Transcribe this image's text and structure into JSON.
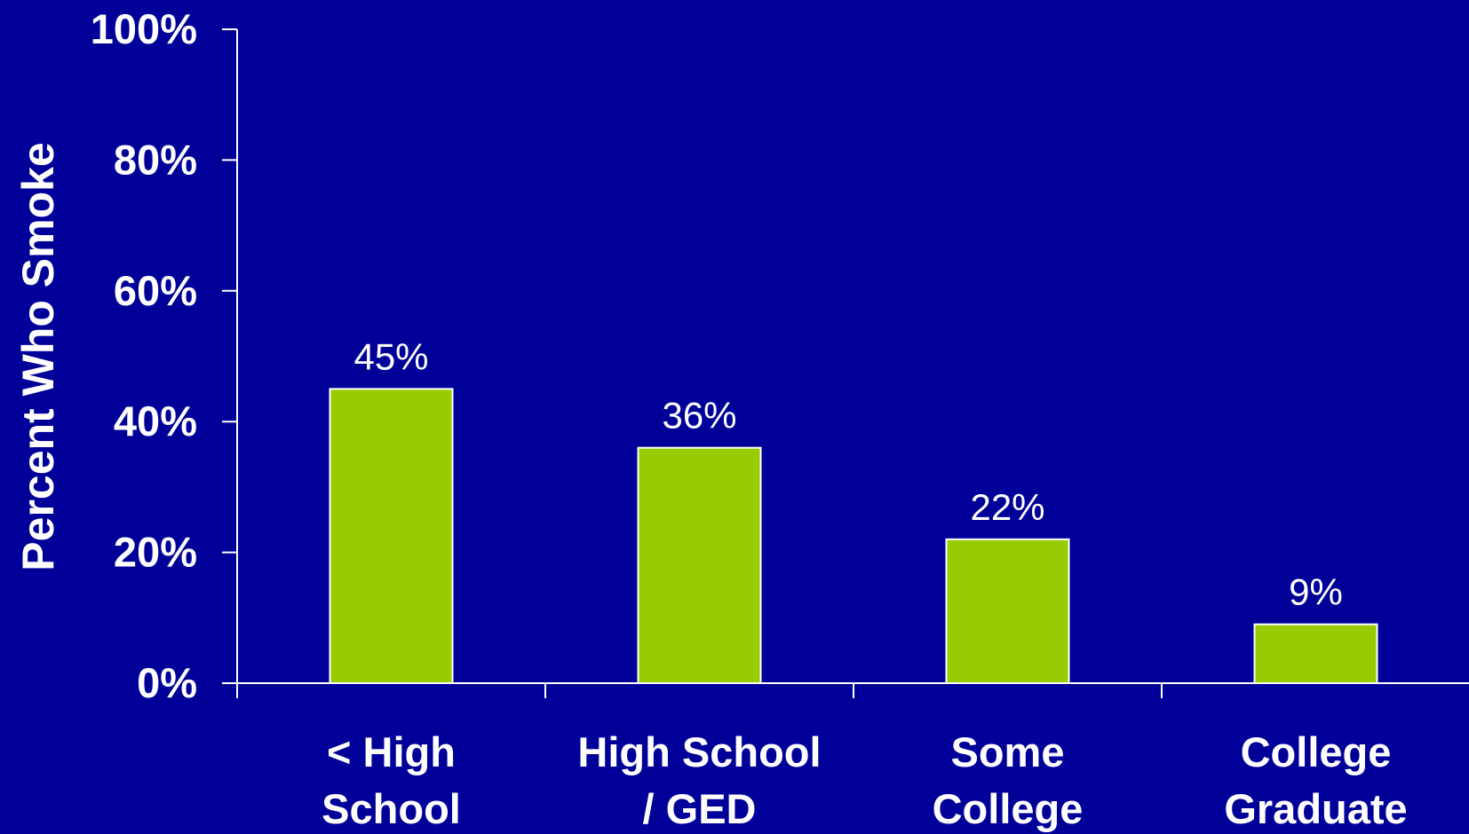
{
  "colors": {
    "background": "#000099",
    "bar_fill": "#99cc00",
    "bar_stroke": "#ffffff",
    "axis": "#ffffff",
    "text": "#ffffff"
  },
  "chart_data": {
    "type": "bar",
    "title": "",
    "xlabel": "",
    "ylabel": "Percent Who Smoke",
    "categories": [
      [
        "< High",
        "School"
      ],
      [
        "High School",
        "/ GED"
      ],
      [
        "Some",
        "College"
      ],
      [
        "College",
        "Graduate"
      ]
    ],
    "values": [
      45,
      36,
      22,
      9
    ],
    "data_labels": [
      "45%",
      "36%",
      "22%",
      "9%"
    ],
    "ylim": [
      0,
      100
    ],
    "yticks": [
      0,
      20,
      40,
      60,
      80,
      100
    ],
    "ytick_labels": [
      "0%",
      "20%",
      "40%",
      "60%",
      "80%",
      "100%"
    ],
    "grid": false,
    "legend": "none"
  }
}
